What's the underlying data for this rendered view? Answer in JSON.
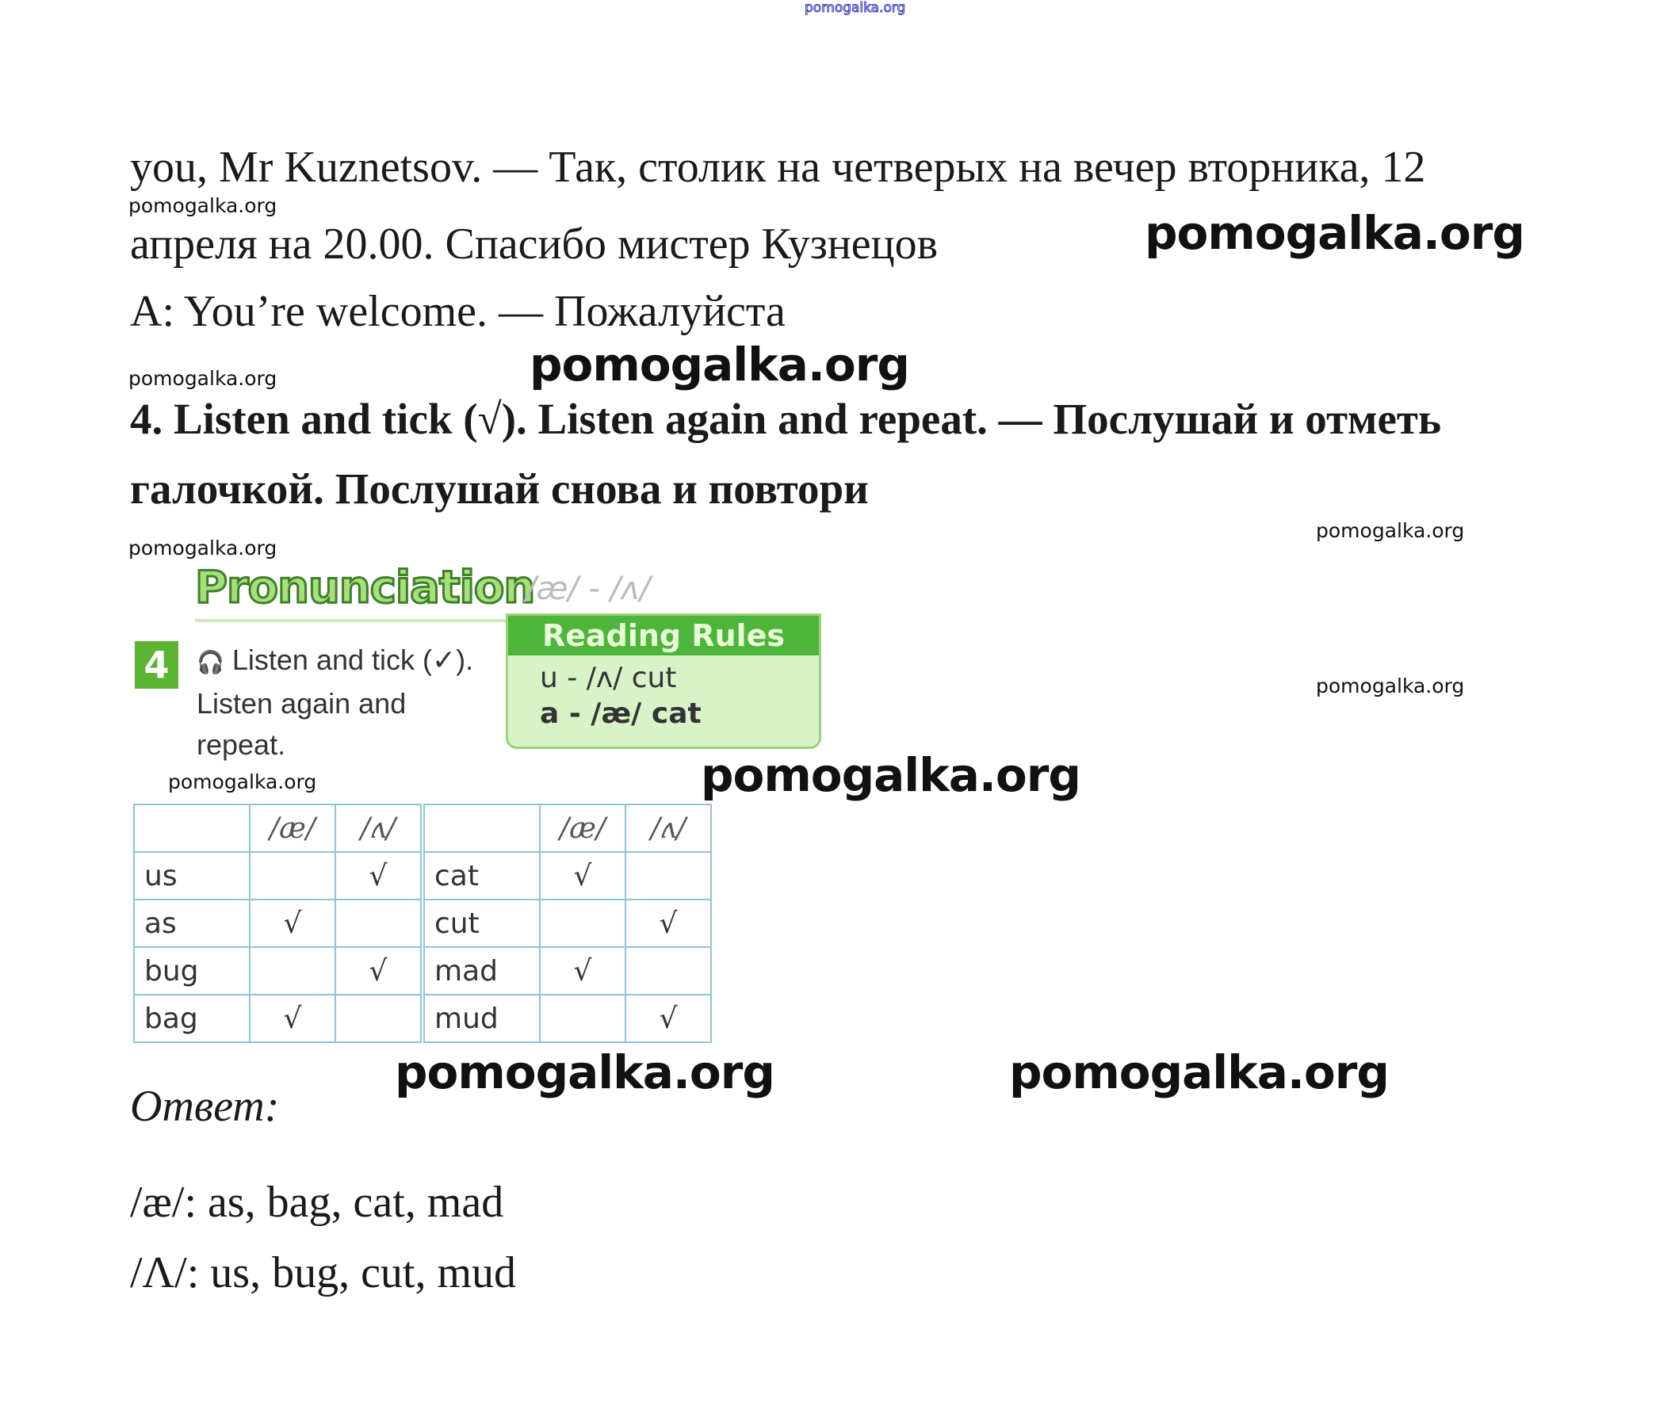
{
  "watermark": "pomogalka.org",
  "lines": {
    "l1": "you, Mr Kuznetsov. — Так, столик на четверых на вечер вторника, 12",
    "l2": "апреля на 20.00. Спасибо мистер Кузнецов",
    "l3": "A: You’re welcome. — Пожалуйста"
  },
  "task": {
    "line1": "4. Listen and tick (√). Listen again and repeat. — Послушай и отметь",
    "line2": "галочкой. Послушай снова и повтори"
  },
  "book": {
    "title": "Pronunciation",
    "title_phonemes": "/æ/ - /ʌ/",
    "number": "4",
    "headphones": "🎧",
    "instruction": "Listen and tick (✓). Listen again and repeat.",
    "rules_title": "Reading Rules",
    "rules": [
      "u - /ʌ/ cut",
      "a - /æ/ cat"
    ],
    "table": {
      "headers": [
        "",
        "/æ/",
        "/ʌ/",
        "",
        "/æ/",
        "/ʌ/"
      ],
      "rows": [
        [
          "us",
          "",
          "√",
          "cat",
          "√",
          ""
        ],
        [
          "as",
          "√",
          "",
          "cut",
          "",
          "√"
        ],
        [
          "bug",
          "",
          "√",
          "mad",
          "√",
          ""
        ],
        [
          "bag",
          "√",
          "",
          "mud",
          "",
          "√"
        ]
      ]
    }
  },
  "answer": {
    "label": "Ответ:",
    "ae": "/æ/: as, bag, cat, mad",
    "uh": "/Λ/: us, bug, cut, mud"
  }
}
